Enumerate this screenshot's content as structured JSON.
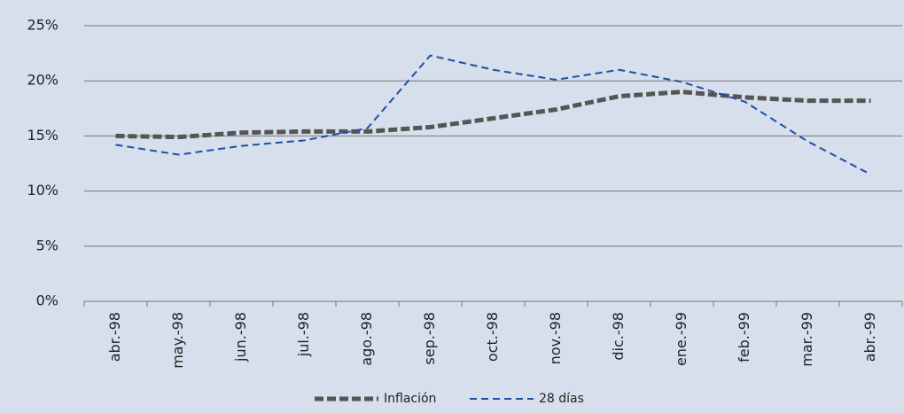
{
  "chart_data": {
    "type": "line",
    "categories": [
      "abr.-98",
      "may.-98",
      "jun.-98",
      "jul.-98",
      "ago.-98",
      "sep.-98",
      "oct.-98",
      "nov.-98",
      "dic.-98",
      "ene.-99",
      "feb.-99",
      "mar.-99",
      "abr.-99"
    ],
    "series": [
      {
        "name": "Inflación",
        "color": "#555555",
        "values": [
          15.0,
          14.9,
          15.3,
          15.4,
          15.4,
          15.8,
          16.6,
          17.4,
          18.6,
          19.0,
          18.5,
          18.2,
          18.2
        ]
      },
      {
        "name": "28 días",
        "color": "#1f4fa8",
        "values": [
          14.2,
          13.3,
          14.1,
          14.6,
          15.7,
          22.3,
          21.0,
          20.1,
          21.0,
          19.9,
          18.1,
          14.5,
          11.5
        ]
      }
    ],
    "ylim": [
      0,
      25
    ],
    "yticks": [
      {
        "value": 0,
        "label": "0%"
      },
      {
        "value": 5,
        "label": "5%"
      },
      {
        "value": 10,
        "label": "10%"
      },
      {
        "value": 15,
        "label": "15%"
      },
      {
        "value": 20,
        "label": "20%"
      },
      {
        "value": 25,
        "label": "25%"
      }
    ],
    "grid": true,
    "legend": "bottom"
  }
}
